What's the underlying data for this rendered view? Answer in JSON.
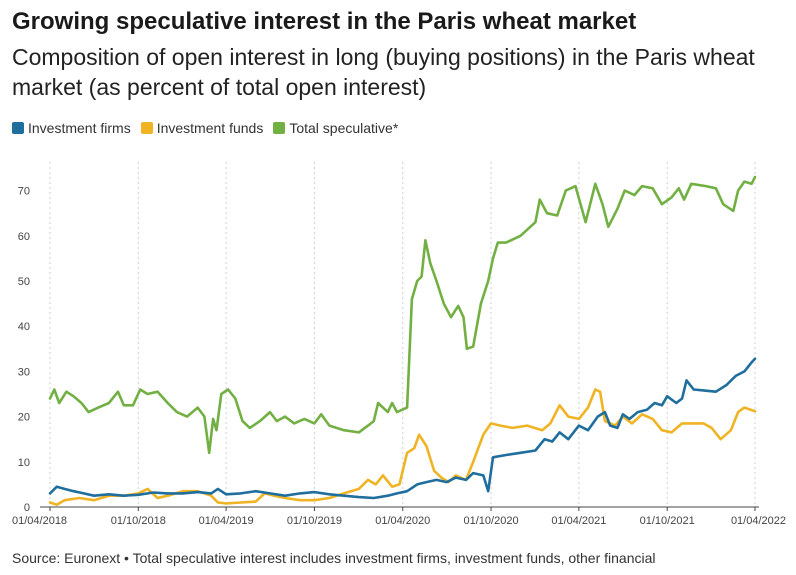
{
  "header": {
    "title": "Growing speculative interest in the Paris wheat market",
    "subtitle": "Composition of open interest in long (buying positions) in the Paris wheat market (as percent of total open interest)"
  },
  "footer": {
    "source": "Source: Euronext • Total speculative interest includes investment firms, investment funds, other financial"
  },
  "chart_data": {
    "type": "line",
    "title": "Growing speculative interest in the Paris wheat market",
    "subtitle": "Composition of open interest in long (buying positions) in the Paris wheat market (as percent of total open interest)",
    "xlabel": "",
    "ylabel": "",
    "ylim": [
      0,
      75
    ],
    "xlim": [
      "2018-04-01",
      "2022-04-01"
    ],
    "yticks": [
      0,
      10,
      20,
      30,
      40,
      50,
      60,
      70
    ],
    "xticks": [
      "01/04/2018",
      "01/10/2018",
      "01/04/2019",
      "01/10/2019",
      "01/04/2020",
      "01/10/2020",
      "01/04/2021",
      "01/10/2021",
      "01/04/2022"
    ],
    "grid": "vertical dotted",
    "legend_position": "top-left",
    "series": [
      {
        "name": "Investment firms",
        "color": "#1f6e9e",
        "points": [
          [
            "2018-04-01",
            3.0
          ],
          [
            "2018-04-15",
            4.5
          ],
          [
            "2018-05-01",
            4.0
          ],
          [
            "2018-05-20",
            3.5
          ],
          [
            "2018-06-10",
            3.0
          ],
          [
            "2018-07-01",
            2.5
          ],
          [
            "2018-08-01",
            2.8
          ],
          [
            "2018-09-01",
            2.5
          ],
          [
            "2018-10-01",
            2.7
          ],
          [
            "2018-11-01",
            3.2
          ],
          [
            "2018-12-01",
            3.0
          ],
          [
            "2019-01-01",
            3.0
          ],
          [
            "2019-02-01",
            3.3
          ],
          [
            "2019-03-01",
            3.0
          ],
          [
            "2019-03-15",
            4.0
          ],
          [
            "2019-04-01",
            2.8
          ],
          [
            "2019-05-01",
            3.0
          ],
          [
            "2019-06-01",
            3.5
          ],
          [
            "2019-07-01",
            3.0
          ],
          [
            "2019-08-01",
            2.5
          ],
          [
            "2019-09-01",
            3.0
          ],
          [
            "2019-10-01",
            3.3
          ],
          [
            "2019-11-01",
            2.8
          ],
          [
            "2019-12-01",
            2.5
          ],
          [
            "2020-01-01",
            2.2
          ],
          [
            "2020-02-01",
            2.0
          ],
          [
            "2020-03-01",
            2.5
          ],
          [
            "2020-03-20",
            3.0
          ],
          [
            "2020-04-10",
            3.5
          ],
          [
            "2020-05-01",
            5.0
          ],
          [
            "2020-05-20",
            5.5
          ],
          [
            "2020-06-10",
            6.0
          ],
          [
            "2020-07-01",
            5.5
          ],
          [
            "2020-07-20",
            6.5
          ],
          [
            "2020-08-10",
            6.0
          ],
          [
            "2020-08-25",
            7.5
          ],
          [
            "2020-09-15",
            7.0
          ],
          [
            "2020-09-25",
            3.5
          ],
          [
            "2020-10-05",
            11.0
          ],
          [
            "2020-11-01",
            11.5
          ],
          [
            "2020-12-01",
            12.0
          ],
          [
            "2021-01-01",
            12.5
          ],
          [
            "2021-01-20",
            15.0
          ],
          [
            "2021-02-05",
            14.5
          ],
          [
            "2021-02-20",
            16.5
          ],
          [
            "2021-03-10",
            15.0
          ],
          [
            "2021-04-01",
            18.0
          ],
          [
            "2021-04-20",
            17.0
          ],
          [
            "2021-05-10",
            20.0
          ],
          [
            "2021-05-25",
            21.0
          ],
          [
            "2021-06-05",
            18.0
          ],
          [
            "2021-06-20",
            17.5
          ],
          [
            "2021-07-01",
            20.5
          ],
          [
            "2021-07-15",
            19.5
          ],
          [
            "2021-08-01",
            21.0
          ],
          [
            "2021-08-20",
            21.5
          ],
          [
            "2021-09-05",
            23.0
          ],
          [
            "2021-09-20",
            22.5
          ],
          [
            "2021-10-01",
            24.5
          ],
          [
            "2021-10-20",
            23.0
          ],
          [
            "2021-11-01",
            24.0
          ],
          [
            "2021-11-10",
            28.0
          ],
          [
            "2021-11-25",
            26.0
          ],
          [
            "2021-12-15",
            25.8
          ],
          [
            "2022-01-10",
            25.5
          ],
          [
            "2022-02-01",
            27.0
          ],
          [
            "2022-02-20",
            29.0
          ],
          [
            "2022-03-10",
            30.0
          ],
          [
            "2022-03-25",
            32.0
          ],
          [
            "2022-04-01",
            32.8
          ]
        ]
      },
      {
        "name": "Investment funds",
        "color": "#f0b323",
        "points": [
          [
            "2018-04-01",
            1.0
          ],
          [
            "2018-04-15",
            0.5
          ],
          [
            "2018-05-01",
            1.5
          ],
          [
            "2018-06-01",
            2.0
          ],
          [
            "2018-07-01",
            1.5
          ],
          [
            "2018-08-01",
            2.5
          ],
          [
            "2018-09-01",
            2.5
          ],
          [
            "2018-10-01",
            3.0
          ],
          [
            "2018-10-20",
            4.0
          ],
          [
            "2018-11-10",
            2.0
          ],
          [
            "2018-12-01",
            2.5
          ],
          [
            "2019-01-01",
            3.5
          ],
          [
            "2019-02-01",
            3.5
          ],
          [
            "2019-03-01",
            2.5
          ],
          [
            "2019-03-15",
            1.0
          ],
          [
            "2019-04-01",
            0.8
          ],
          [
            "2019-05-01",
            1.0
          ],
          [
            "2019-06-01",
            1.2
          ],
          [
            "2019-06-20",
            3.0
          ],
          [
            "2019-07-10",
            2.5
          ],
          [
            "2019-08-01",
            2.0
          ],
          [
            "2019-09-01",
            1.5
          ],
          [
            "2019-10-01",
            1.5
          ],
          [
            "2019-11-01",
            2.0
          ],
          [
            "2019-12-01",
            3.0
          ],
          [
            "2020-01-01",
            4.0
          ],
          [
            "2020-01-20",
            6.0
          ],
          [
            "2020-02-05",
            5.0
          ],
          [
            "2020-02-20",
            7.0
          ],
          [
            "2020-03-10",
            4.5
          ],
          [
            "2020-03-25",
            5.0
          ],
          [
            "2020-04-10",
            12.0
          ],
          [
            "2020-04-25",
            13.0
          ],
          [
            "2020-05-05",
            16.0
          ],
          [
            "2020-05-20",
            13.5
          ],
          [
            "2020-06-05",
            8.0
          ],
          [
            "2020-06-20",
            6.5
          ],
          [
            "2020-07-05",
            5.5
          ],
          [
            "2020-07-20",
            7.0
          ],
          [
            "2020-08-10",
            6.0
          ],
          [
            "2020-08-25",
            10.0
          ],
          [
            "2020-09-15",
            16.0
          ],
          [
            "2020-10-01",
            18.5
          ],
          [
            "2020-10-20",
            18.0
          ],
          [
            "2020-11-15",
            17.5
          ],
          [
            "2020-12-15",
            18.0
          ],
          [
            "2021-01-15",
            17.0
          ],
          [
            "2021-02-01",
            18.5
          ],
          [
            "2021-02-20",
            22.5
          ],
          [
            "2021-03-10",
            20.0
          ],
          [
            "2021-04-01",
            19.5
          ],
          [
            "2021-04-20",
            22.0
          ],
          [
            "2021-05-05",
            26.0
          ],
          [
            "2021-05-15",
            25.5
          ],
          [
            "2021-05-25",
            19.0
          ],
          [
            "2021-06-15",
            18.0
          ],
          [
            "2021-07-01",
            20.0
          ],
          [
            "2021-07-20",
            18.5
          ],
          [
            "2021-08-10",
            20.5
          ],
          [
            "2021-09-01",
            19.5
          ],
          [
            "2021-09-20",
            17.0
          ],
          [
            "2021-10-10",
            16.5
          ],
          [
            "2021-11-01",
            18.5
          ],
          [
            "2021-12-15",
            18.5
          ],
          [
            "2022-01-01",
            17.5
          ],
          [
            "2022-01-20",
            15.0
          ],
          [
            "2022-02-10",
            17.0
          ],
          [
            "2022-02-25",
            21.0
          ],
          [
            "2022-03-10",
            22.0
          ],
          [
            "2022-04-01",
            21.2
          ]
        ]
      },
      {
        "name": "Total speculative*",
        "color": "#72b043",
        "points": [
          [
            "2018-04-01",
            24.0
          ],
          [
            "2018-04-10",
            26.0
          ],
          [
            "2018-04-20",
            23.0
          ],
          [
            "2018-05-05",
            25.5
          ],
          [
            "2018-05-20",
            24.5
          ],
          [
            "2018-06-05",
            23.0
          ],
          [
            "2018-06-20",
            21.0
          ],
          [
            "2018-07-10",
            22.0
          ],
          [
            "2018-08-01",
            23.0
          ],
          [
            "2018-08-20",
            25.5
          ],
          [
            "2018-09-01",
            22.5
          ],
          [
            "2018-09-20",
            22.5
          ],
          [
            "2018-10-05",
            26.0
          ],
          [
            "2018-10-20",
            25.0
          ],
          [
            "2018-11-10",
            25.5
          ],
          [
            "2018-12-01",
            23.0
          ],
          [
            "2018-12-20",
            21.0
          ],
          [
            "2019-01-10",
            20.0
          ],
          [
            "2019-02-01",
            22.0
          ],
          [
            "2019-02-15",
            20.0
          ],
          [
            "2019-02-25",
            12.0
          ],
          [
            "2019-03-05",
            19.5
          ],
          [
            "2019-03-12",
            17.0
          ],
          [
            "2019-03-22",
            25.0
          ],
          [
            "2019-04-05",
            26.0
          ],
          [
            "2019-04-20",
            24.0
          ],
          [
            "2019-05-05",
            19.0
          ],
          [
            "2019-05-20",
            17.5
          ],
          [
            "2019-06-10",
            19.0
          ],
          [
            "2019-07-01",
            21.0
          ],
          [
            "2019-07-15",
            19.0
          ],
          [
            "2019-08-01",
            20.0
          ],
          [
            "2019-08-20",
            18.5
          ],
          [
            "2019-09-10",
            19.5
          ],
          [
            "2019-10-01",
            18.5
          ],
          [
            "2019-10-15",
            20.5
          ],
          [
            "2019-11-01",
            18.0
          ],
          [
            "2019-12-01",
            17.0
          ],
          [
            "2020-01-01",
            16.5
          ],
          [
            "2020-01-20",
            18.0
          ],
          [
            "2020-02-01",
            19.0
          ],
          [
            "2020-02-10",
            23.0
          ],
          [
            "2020-02-20",
            22.0
          ],
          [
            "2020-03-01",
            21.0
          ],
          [
            "2020-03-10",
            23.0
          ],
          [
            "2020-03-20",
            21.0
          ],
          [
            "2020-04-10",
            22.0
          ],
          [
            "2020-04-20",
            46.0
          ],
          [
            "2020-05-01",
            50.0
          ],
          [
            "2020-05-10",
            51.0
          ],
          [
            "2020-05-18",
            59.0
          ],
          [
            "2020-05-28",
            54.0
          ],
          [
            "2020-06-10",
            50.0
          ],
          [
            "2020-06-25",
            45.0
          ],
          [
            "2020-07-10",
            42.0
          ],
          [
            "2020-07-25",
            44.5
          ],
          [
            "2020-08-05",
            42.0
          ],
          [
            "2020-08-12",
            35.0
          ],
          [
            "2020-08-25",
            35.5
          ],
          [
            "2020-09-10",
            45.0
          ],
          [
            "2020-09-25",
            50.0
          ],
          [
            "2020-10-05",
            55.0
          ],
          [
            "2020-10-15",
            58.5
          ],
          [
            "2020-11-01",
            58.5
          ],
          [
            "2020-12-01",
            60.0
          ],
          [
            "2021-01-01",
            63.0
          ],
          [
            "2021-01-10",
            68.0
          ],
          [
            "2021-01-25",
            65.0
          ],
          [
            "2021-02-15",
            64.5
          ],
          [
            "2021-03-05",
            70.0
          ],
          [
            "2021-03-25",
            71.0
          ],
          [
            "2021-04-15",
            63.0
          ],
          [
            "2021-05-05",
            71.5
          ],
          [
            "2021-05-20",
            67.0
          ],
          [
            "2021-06-01",
            62.0
          ],
          [
            "2021-06-20",
            66.0
          ],
          [
            "2021-07-05",
            70.0
          ],
          [
            "2021-07-25",
            69.0
          ],
          [
            "2021-08-10",
            71.0
          ],
          [
            "2021-09-01",
            70.5
          ],
          [
            "2021-09-20",
            67.0
          ],
          [
            "2021-10-10",
            68.5
          ],
          [
            "2021-10-25",
            70.5
          ],
          [
            "2021-11-05",
            68.0
          ],
          [
            "2021-11-20",
            71.5
          ],
          [
            "2021-12-20",
            71.0
          ],
          [
            "2022-01-10",
            70.5
          ],
          [
            "2022-01-25",
            67.0
          ],
          [
            "2022-02-15",
            65.5
          ],
          [
            "2022-02-25",
            70.0
          ],
          [
            "2022-03-10",
            72.0
          ],
          [
            "2022-03-25",
            71.5
          ],
          [
            "2022-04-01",
            73.0
          ]
        ]
      }
    ]
  }
}
